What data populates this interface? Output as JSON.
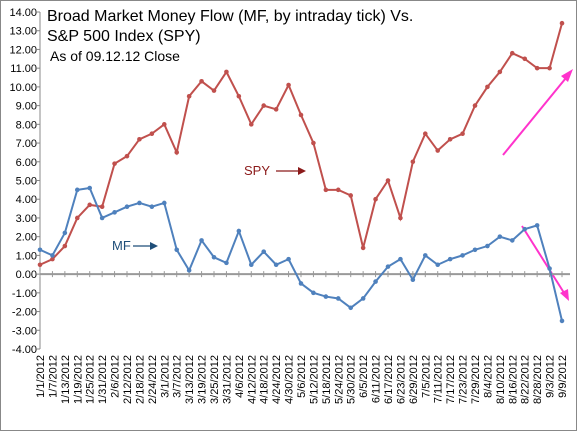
{
  "chart_data": {
    "type": "line",
    "title": "Broad Market Money Flow (MF, by intraday tick) Vs.",
    "subtitle": "S&P 500 Index (SPY)",
    "annotations": [
      "As of 09.12.12 Close"
    ],
    "categories": [
      "1/1/2012",
      "1/7/2012",
      "1/13/2012",
      "1/19/2012",
      "1/25/2012",
      "1/31/2012",
      "2/6/2012",
      "2/12/2012",
      "2/18/2012",
      "2/24/2012",
      "3/1/2012",
      "3/7/2012",
      "3/13/2012",
      "3/19/2012",
      "3/25/2012",
      "3/31/2012",
      "4/6/2012",
      "4/12/2012",
      "4/18/2012",
      "4/24/2012",
      "4/30/2012",
      "5/6/2012",
      "5/12/2012",
      "5/18/2012",
      "5/24/2012",
      "5/30/2012",
      "6/5/2012",
      "6/11/2012",
      "6/17/2012",
      "6/23/2012",
      "6/29/2012",
      "7/5/2012",
      "7/11/2012",
      "7/17/2012",
      "7/23/2012",
      "7/29/2012",
      "8/4/2012",
      "8/10/2012",
      "8/16/2012",
      "8/22/2012",
      "8/28/2012",
      "9/3/2012",
      "9/9/2012"
    ],
    "series": [
      {
        "name": "SPY",
        "color": "#c0504d",
        "values": [
          0.5,
          0.8,
          1.5,
          3.0,
          3.7,
          3.6,
          5.9,
          6.3,
          7.2,
          7.5,
          8.0,
          6.5,
          9.5,
          10.3,
          9.8,
          10.8,
          9.5,
          8.0,
          9.0,
          8.8,
          10.1,
          8.5,
          7.0,
          4.5,
          4.5,
          4.2,
          1.4,
          4.0,
          5.0,
          3.0,
          6.0,
          7.5,
          6.6,
          7.2,
          7.5,
          9.0,
          10.0,
          10.8,
          11.8,
          11.5,
          11.0,
          11.0,
          13.4
        ]
      },
      {
        "name": "MF",
        "color": "#4f81bd",
        "values": [
          1.3,
          1.0,
          2.2,
          4.5,
          4.6,
          3.0,
          3.3,
          3.6,
          3.8,
          3.6,
          3.8,
          1.3,
          0.2,
          1.8,
          0.9,
          0.6,
          2.3,
          0.5,
          1.2,
          0.5,
          0.8,
          -0.5,
          -1.0,
          -1.2,
          -1.3,
          -1.8,
          -1.3,
          -0.4,
          0.4,
          0.8,
          -0.3,
          1.0,
          0.5,
          0.8,
          1.0,
          1.3,
          1.5,
          2.0,
          1.8,
          2.4,
          2.6,
          0.3,
          -2.5
        ]
      }
    ],
    "ylim": [
      -4,
      14
    ],
    "yticks": [
      {
        "value": -4,
        "label": "-4.00"
      },
      {
        "value": -3,
        "label": "-3.00"
      },
      {
        "value": -2,
        "label": "-2.00"
      },
      {
        "value": -1,
        "label": "-1.00"
      },
      {
        "value": 0,
        "label": "0.00"
      },
      {
        "value": 1,
        "label": "1.00"
      },
      {
        "value": 2,
        "label": "2.00"
      },
      {
        "value": 3,
        "label": "3.00"
      },
      {
        "value": 4,
        "label": "4.00"
      },
      {
        "value": 5,
        "label": "5.00"
      },
      {
        "value": 6,
        "label": "6.00"
      },
      {
        "value": 7,
        "label": "7.00"
      },
      {
        "value": 8,
        "label": "8.00"
      },
      {
        "value": 9,
        "label": "9.00"
      },
      {
        "value": 10,
        "label": "10.00"
      },
      {
        "value": 11,
        "label": "11.00"
      },
      {
        "value": 12,
        "label": "12.00"
      },
      {
        "value": 13,
        "label": "13.00"
      },
      {
        "value": 14,
        "label": "14.00"
      }
    ],
    "grid": false
  }
}
